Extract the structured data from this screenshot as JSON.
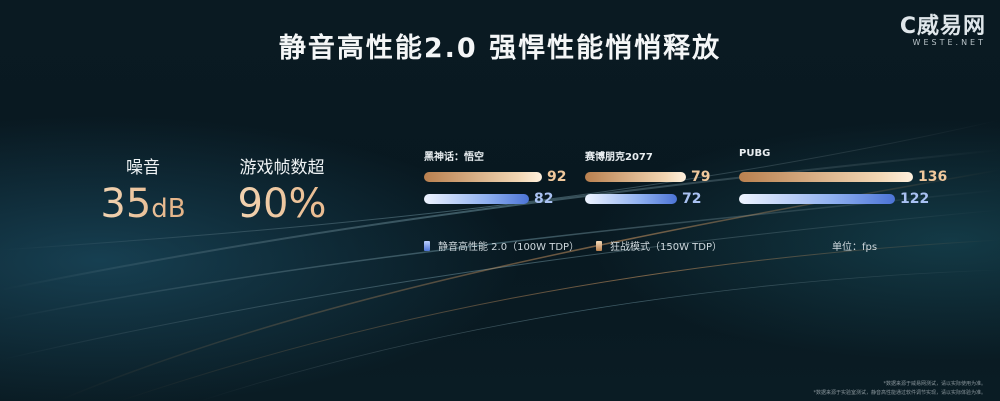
{
  "title": "静音高性能2.0 强悍性能悄悄释放",
  "logo": {
    "mark": "C威易网",
    "sub": "WESTE.NET"
  },
  "stats": [
    {
      "label": "噪音",
      "value": "35",
      "unit": "dB"
    },
    {
      "label": "游戏帧数超",
      "value": "90",
      "unit": "%"
    }
  ],
  "legend": {
    "silent": "静音高性能 2.0（100W TDP）",
    "frenzy": "狂战模式（150W TDP）",
    "unit": "单位：fps"
  },
  "colors": {
    "frenzy": "#f0c89c",
    "silent": "#8fb0f0"
  },
  "chart_data": {
    "type": "bar",
    "orientation": "horizontal",
    "categories": [
      "黑神话：悟空",
      "赛博朋克2077",
      "PUBG"
    ],
    "series": [
      {
        "name": "狂战模式（150W TDP）",
        "values": [
          92,
          79,
          136
        ]
      },
      {
        "name": "静音高性能 2.0（100W TDP）",
        "values": [
          82,
          72,
          122
        ]
      }
    ],
    "ylabel": "单位：fps"
  },
  "footnotes": [
    "*数据来源于威易网测试，请以实际使用为准。",
    "*数据来源于实验室测试，静音高性能通过软件调节实现，请以实际体验为准。"
  ]
}
